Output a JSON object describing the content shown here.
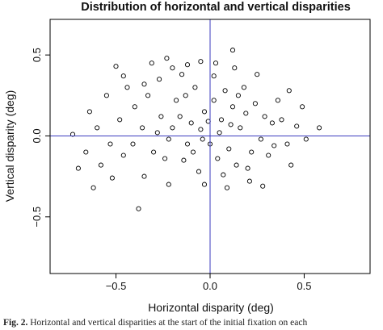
{
  "chart_data": {
    "type": "scatter",
    "title": "Distribution of horizontal and vertical disparities",
    "xlabel": "Horizontal disparity (deg)",
    "ylabel": "Vertical disparity (deg)",
    "xlim": [
      -0.85,
      0.85
    ],
    "ylim": [
      -0.85,
      0.72
    ],
    "xticks": [
      -0.5,
      0.0,
      0.5
    ],
    "xtick_labels": [
      "−0.5",
      "0.0",
      "0.5"
    ],
    "yticks": [
      -0.5,
      0.0,
      0.5
    ],
    "ytick_labels": [
      "−0.5",
      "0.0",
      "0.5"
    ],
    "reference_lines": {
      "x": 0.0,
      "y": 0.0,
      "color": "#3b3bbf"
    },
    "grid": false,
    "legend": "none",
    "marker": "open-circle",
    "colors": {
      "points": "#000000",
      "reference_lines": "#3b3bbf",
      "frame": "#000000"
    },
    "points": [
      [
        -0.73,
        0.01
      ],
      [
        0.58,
        0.05
      ],
      [
        0.12,
        0.53
      ],
      [
        -0.23,
        0.48
      ],
      [
        0.13,
        0.42
      ],
      [
        -0.5,
        0.43
      ],
      [
        -0.46,
        0.37
      ],
      [
        -0.31,
        0.45
      ],
      [
        -0.2,
        0.42
      ],
      [
        -0.05,
        0.46
      ],
      [
        0.03,
        0.45
      ],
      [
        -0.12,
        0.44
      ],
      [
        0.25,
        0.38
      ],
      [
        0.42,
        0.28
      ],
      [
        0.38,
        0.1
      ],
      [
        0.49,
        0.18
      ],
      [
        0.51,
        -0.02
      ],
      [
        0.41,
        -0.05
      ],
      [
        0.43,
        -0.18
      ],
      [
        0.28,
        -0.31
      ],
      [
        0.09,
        -0.32
      ],
      [
        -0.03,
        -0.3
      ],
      [
        -0.38,
        -0.45
      ],
      [
        -0.62,
        -0.32
      ],
      [
        -0.7,
        -0.2
      ],
      [
        -0.66,
        -0.1
      ],
      [
        -0.22,
        -0.3
      ],
      [
        0.2,
        -0.2
      ],
      [
        0.33,
        0.08
      ],
      [
        0.31,
        -0.12
      ],
      [
        -0.55,
        0.25
      ],
      [
        -0.44,
        0.3
      ],
      [
        -0.64,
        0.15
      ],
      [
        -0.58,
        -0.18
      ],
      [
        -0.52,
        -0.26
      ],
      [
        -0.35,
        -0.25
      ],
      [
        0.02,
        0.37
      ],
      [
        0.18,
        0.3
      ],
      [
        -0.27,
        0.35
      ],
      [
        -0.15,
        0.38
      ],
      [
        -0.4,
        0.18
      ],
      [
        -0.33,
        0.25
      ],
      [
        -0.36,
        0.05
      ],
      [
        -0.41,
        -0.05
      ],
      [
        -0.3,
        -0.1
      ],
      [
        -0.26,
        0.12
      ],
      [
        -0.22,
        -0.02
      ],
      [
        -0.18,
        0.22
      ],
      [
        -0.14,
        -0.15
      ],
      [
        -0.1,
        0.08
      ],
      [
        -0.08,
        0.3
      ],
      [
        -0.06,
        -0.22
      ],
      [
        -0.03,
        0.15
      ],
      [
        0.0,
        -0.05
      ],
      [
        0.02,
        0.22
      ],
      [
        0.04,
        -0.14
      ],
      [
        0.06,
        0.1
      ],
      [
        0.08,
        0.28
      ],
      [
        0.1,
        -0.08
      ],
      [
        0.12,
        0.18
      ],
      [
        0.14,
        -0.18
      ],
      [
        0.16,
        0.05
      ],
      [
        0.19,
        0.14
      ],
      [
        0.22,
        -0.1
      ],
      [
        0.24,
        0.2
      ],
      [
        0.27,
        -0.02
      ],
      [
        0.29,
        0.12
      ],
      [
        0.34,
        -0.06
      ],
      [
        -0.48,
        0.1
      ],
      [
        -0.46,
        -0.12
      ],
      [
        -0.2,
        0.05
      ],
      [
        -0.12,
        -0.05
      ],
      [
        -0.05,
        0.04
      ],
      [
        -0.16,
        0.12
      ],
      [
        -0.09,
        -0.1
      ],
      [
        -0.01,
        0.09
      ],
      [
        0.05,
        0.02
      ],
      [
        0.11,
        0.07
      ],
      [
        -0.24,
        -0.14
      ],
      [
        -0.28,
        0.02
      ],
      [
        -0.13,
        0.25
      ],
      [
        -0.04,
        -0.02
      ],
      [
        0.07,
        -0.24
      ],
      [
        0.15,
        0.25
      ],
      [
        -0.35,
        0.32
      ],
      [
        -0.53,
        -0.05
      ],
      [
        -0.6,
        0.05
      ],
      [
        0.36,
        0.22
      ],
      [
        0.46,
        0.06
      ],
      [
        0.21,
        -0.28
      ]
    ]
  },
  "caption": {
    "label": "Fig. 2.",
    "text": "Horizontal and vertical disparities at the start of the initial fixation on each"
  }
}
